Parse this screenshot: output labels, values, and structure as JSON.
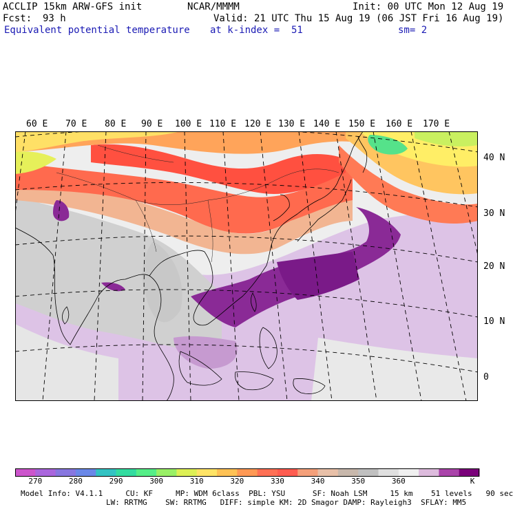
{
  "header": {
    "model_title": "ACCLIP 15km ARW-GFS init",
    "center": "NCAR/MMMM",
    "init": "Init: 00 UTC Mon 12 Aug 19",
    "fcst_label": "Fcst:",
    "fcst_value": "93 h",
    "valid": "Valid: 21 UTC Thu 15 Aug 19 (06 JST Fri 16 Aug 19)",
    "field": "Equivalent potential temperature",
    "level": "at k-index =  51",
    "smoothing": "sm= 2"
  },
  "map": {
    "lon_labels": [
      "60 E",
      "70 E",
      "80 E",
      "90 E",
      "100 E",
      "110 E",
      "120 E",
      "130 E",
      "140 E",
      "150 E",
      "160 E",
      "170 E"
    ],
    "lat_labels": [
      "40 N",
      "30 N",
      "20 N",
      "10 N",
      "0"
    ]
  },
  "colorbar": {
    "colors": [
      "#cc55cc",
      "#aa66dd",
      "#8877e0",
      "#6a88e8",
      "#33c3c3",
      "#33dca0",
      "#55ee88",
      "#99f066",
      "#ddf055",
      "#ffe466",
      "#ffc255",
      "#ff9955",
      "#ff7055",
      "#ff5c50",
      "#f5a07a",
      "#e8c0a8",
      "#c8b8ac",
      "#c0c0c0",
      "#e0e0e0",
      "#f0f0f0",
      "#ddbbdd",
      "#aa44aa",
      "#7a007a"
    ],
    "ticks": [
      "270",
      "280",
      "290",
      "300",
      "310",
      "320",
      "330",
      "340",
      "350",
      "360"
    ],
    "unit": "K"
  },
  "footer": {
    "line1": "Model Info: V4.1.1     CU: KF     MP: WDM 6class  PBL: YSU      SF: Noah LSM     15 km    51 levels   90 sec",
    "line2": "LW: RRTMG    SW: RRTMG   DIFF: simple KM: 2D Smagor DAMP: Rayleigh3  SFLAY: MM5"
  }
}
